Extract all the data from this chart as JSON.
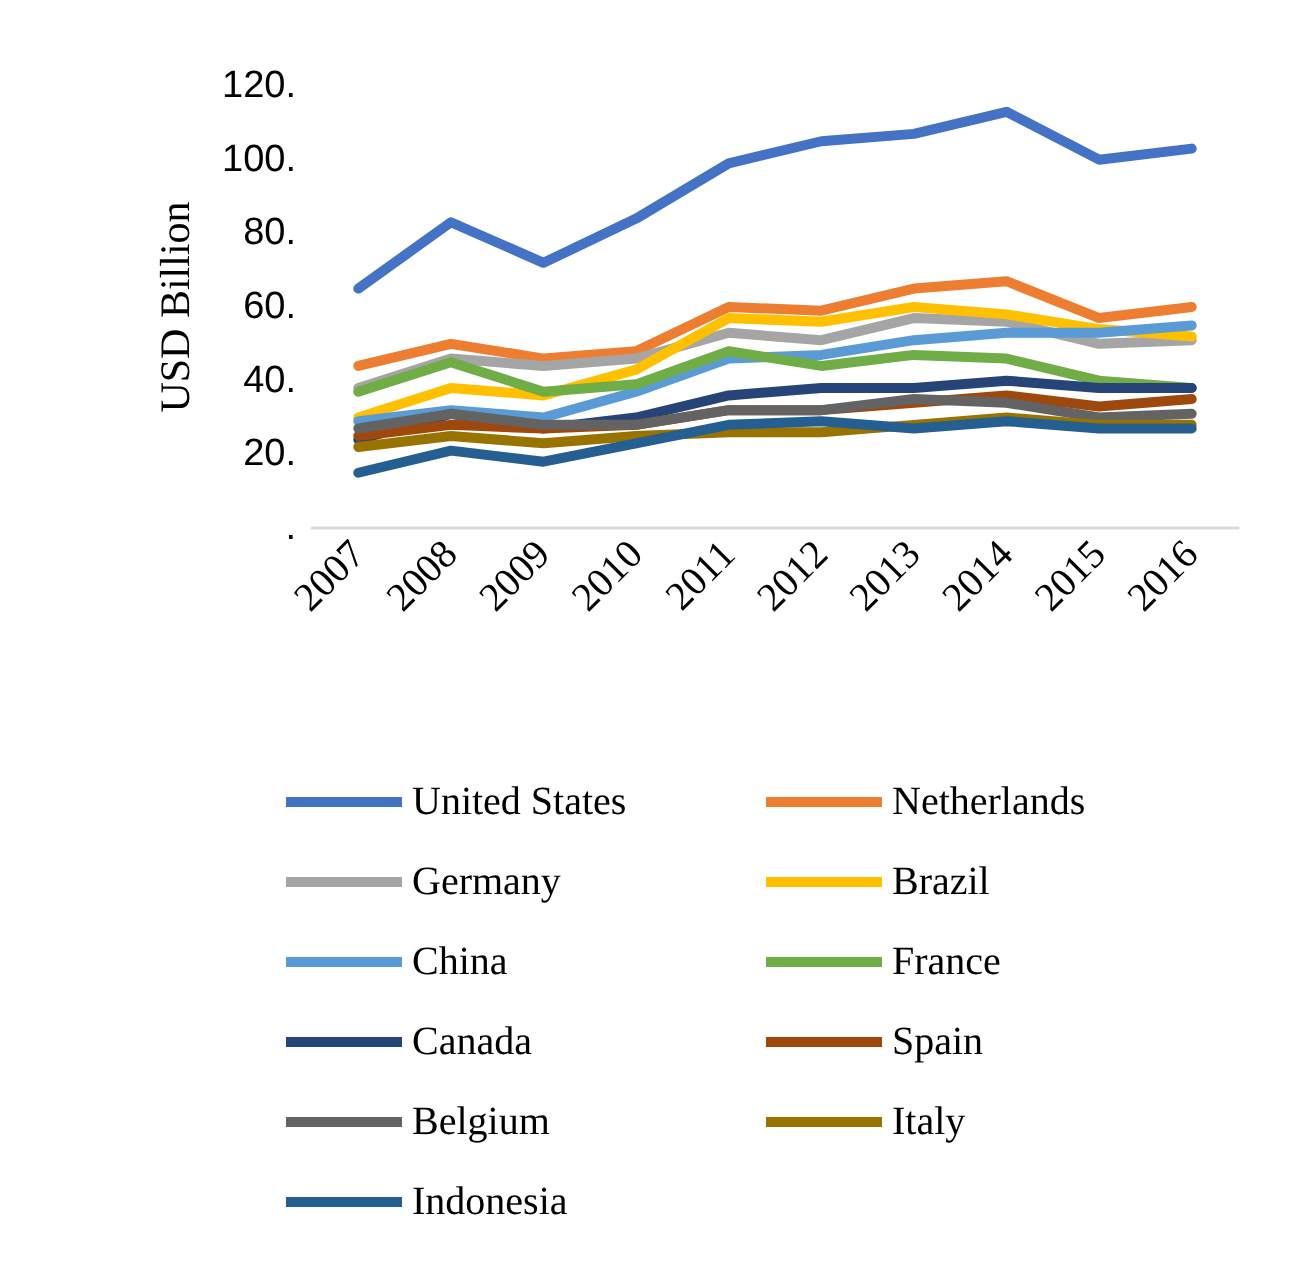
{
  "chart_data": {
    "type": "line",
    "ylabel": "USD Billion",
    "categories": [
      "2007",
      "2008",
      "2009",
      "2010",
      "2011",
      "2012",
      "2013",
      "2014",
      "2015",
      "2016"
    ],
    "ylim": [
      0,
      120
    ],
    "yticks": [
      {
        "value": 0,
        "label": "."
      },
      {
        "value": 20,
        "label": "20."
      },
      {
        "value": 40,
        "label": "40."
      },
      {
        "value": 60,
        "label": "60."
      },
      {
        "value": 80,
        "label": "80."
      },
      {
        "value": 100,
        "label": "100."
      },
      {
        "value": 120,
        "label": "120."
      }
    ],
    "grid": false,
    "legend": "bottom",
    "marker": "none",
    "line_style": "solid",
    "series": [
      {
        "name": "United States",
        "color": "#4472c4",
        "values": [
          65,
          83,
          72,
          84,
          99,
          105,
          107,
          113,
          100,
          103
        ]
      },
      {
        "name": "Netherlands",
        "color": "#ed7d31",
        "values": [
          44,
          50,
          46,
          48,
          60,
          59,
          65,
          67,
          57,
          60
        ]
      },
      {
        "name": "Germany",
        "color": "#a5a5a5",
        "values": [
          38,
          46,
          44,
          46,
          53,
          51,
          57,
          56,
          50,
          51
        ]
      },
      {
        "name": "Brazil",
        "color": "#ffc000",
        "values": [
          30,
          38,
          36,
          43,
          57,
          56,
          60,
          58,
          54,
          52
        ]
      },
      {
        "name": "China",
        "color": "#5b9bd5",
        "values": [
          29,
          32,
          30,
          37,
          46,
          47,
          51,
          53,
          53,
          55
        ]
      },
      {
        "name": "France",
        "color": "#70ad47",
        "values": [
          37,
          45,
          37,
          39,
          48,
          44,
          47,
          46,
          40,
          38
        ]
      },
      {
        "name": "Canada",
        "color": "#264478",
        "values": [
          24,
          31,
          27,
          30,
          36,
          38,
          38,
          40,
          38,
          38
        ]
      },
      {
        "name": "Spain",
        "color": "#9e480e",
        "values": [
          25,
          28,
          27,
          28,
          32,
          32,
          34,
          36,
          33,
          35
        ]
      },
      {
        "name": "Belgium",
        "color": "#636363",
        "values": [
          27,
          31,
          28,
          28,
          32,
          32,
          35,
          34,
          30,
          31
        ]
      },
      {
        "name": "Italy",
        "color": "#997300",
        "values": [
          22,
          25,
          23,
          25,
          26,
          26,
          28,
          30,
          28,
          28
        ]
      },
      {
        "name": "Indonesia",
        "color": "#255e91",
        "values": [
          15,
          21,
          18,
          23,
          28,
          29,
          27,
          29,
          27,
          27
        ]
      }
    ]
  }
}
